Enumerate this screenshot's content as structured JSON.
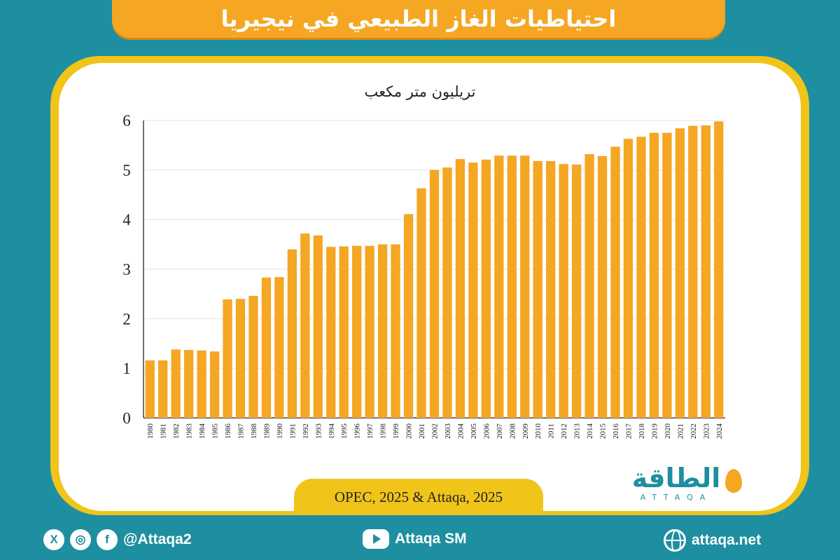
{
  "header": {
    "title": "احتياطيات الغاز الطبيعي في نيجيريا"
  },
  "colors": {
    "background": "#1d8fa0",
    "accent": "#f5a623",
    "card_border": "#f0c419",
    "bar": "#f5a623"
  },
  "chart_data": {
    "type": "bar",
    "unit_label": "تريليون متر مكعب",
    "categories": [
      "1980",
      "1981",
      "1982",
      "1983",
      "1984",
      "1985",
      "1986",
      "1987",
      "1988",
      "1989",
      "1990",
      "1991",
      "1992",
      "1993",
      "1994",
      "1995",
      "1996",
      "1997",
      "1998",
      "1999",
      "2000",
      "2001",
      "2002",
      "2003",
      "2004",
      "2005",
      "2006",
      "2007",
      "2008",
      "2009",
      "2010",
      "2011",
      "2012",
      "2013",
      "2014",
      "2015",
      "2016",
      "2017",
      "2018",
      "2019",
      "2020",
      "2021",
      "2022",
      "2023",
      "2024"
    ],
    "values": [
      1.16,
      1.16,
      1.38,
      1.37,
      1.36,
      1.34,
      2.39,
      2.4,
      2.46,
      2.83,
      2.84,
      3.4,
      3.72,
      3.68,
      3.45,
      3.46,
      3.47,
      3.47,
      3.5,
      3.5,
      4.11,
      4.63,
      5.0,
      5.05,
      5.22,
      5.15,
      5.21,
      5.29,
      5.29,
      5.29,
      5.18,
      5.18,
      5.12,
      5.11,
      5.32,
      5.28,
      5.47,
      5.63,
      5.67,
      5.75,
      5.75,
      5.84,
      5.89,
      5.9,
      5.98
    ],
    "yticks": [
      "0",
      "1",
      "2",
      "3",
      "4",
      "5",
      "6"
    ],
    "ylim": [
      0,
      6
    ],
    "grid": true
  },
  "source": {
    "text": "OPEC, 2025 & Attaqa, 2025"
  },
  "brand": {
    "arabic": "الطاقة",
    "latin": "ATTAQA"
  },
  "footer": {
    "social_handle": "@Attaqa2",
    "youtube": "Attaqa SM",
    "website": "attaqa.net",
    "icon_x": "X",
    "icon_instagram": "◎",
    "icon_facebook": "f"
  }
}
